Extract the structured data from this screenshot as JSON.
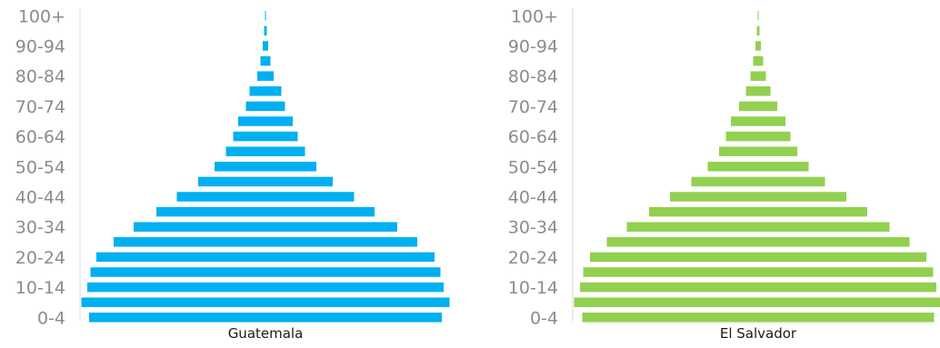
{
  "chart_data": [
    {
      "type": "bar",
      "orientation": "horizontal",
      "style": "population-pyramid",
      "title": "",
      "xlabel": "Guatemala",
      "ylabel": "",
      "color": "#00b0f0",
      "categories": [
        "0-4",
        "5-9",
        "10-14",
        "15-19",
        "20-24",
        "25-29",
        "30-34",
        "35-39",
        "40-44",
        "45-49",
        "50-54",
        "55-59",
        "60-64",
        "65-69",
        "70-74",
        "75-79",
        "80-84",
        "85-89",
        "90-94",
        "95-99",
        "100+"
      ],
      "tick_labels": [
        "0-4",
        "10-14",
        "20-24",
        "30-34",
        "40-44",
        "50-54",
        "60-64",
        "70-74",
        "80-84",
        "90-94",
        "100+"
      ],
      "values": [
        388,
        405,
        392,
        385,
        372,
        334,
        290,
        240,
        195,
        148,
        112,
        87,
        71,
        60,
        43,
        35,
        18,
        11,
        6,
        3,
        1
      ]
    },
    {
      "type": "bar",
      "orientation": "horizontal",
      "style": "population-pyramid",
      "title": "",
      "xlabel": "El Salvador",
      "ylabel": "",
      "color": "#92d050",
      "categories": [
        "0-4",
        "5-9",
        "10-14",
        "15-19",
        "20-24",
        "25-29",
        "30-34",
        "35-39",
        "40-44",
        "45-49",
        "50-54",
        "55-59",
        "60-64",
        "65-69",
        "70-74",
        "75-79",
        "80-84",
        "85-89",
        "90-94",
        "95-99",
        "100+"
      ],
      "tick_labels": [
        "0-4",
        "10-14",
        "20-24",
        "30-34",
        "40-44",
        "50-54",
        "60-64",
        "70-74",
        "80-84",
        "90-94",
        "100+"
      ],
      "values": [
        387,
        405,
        392,
        385,
        370,
        333,
        289,
        240,
        194,
        147,
        111,
        86,
        71,
        60,
        42,
        27,
        17,
        11,
        6,
        3,
        1
      ]
    }
  ]
}
